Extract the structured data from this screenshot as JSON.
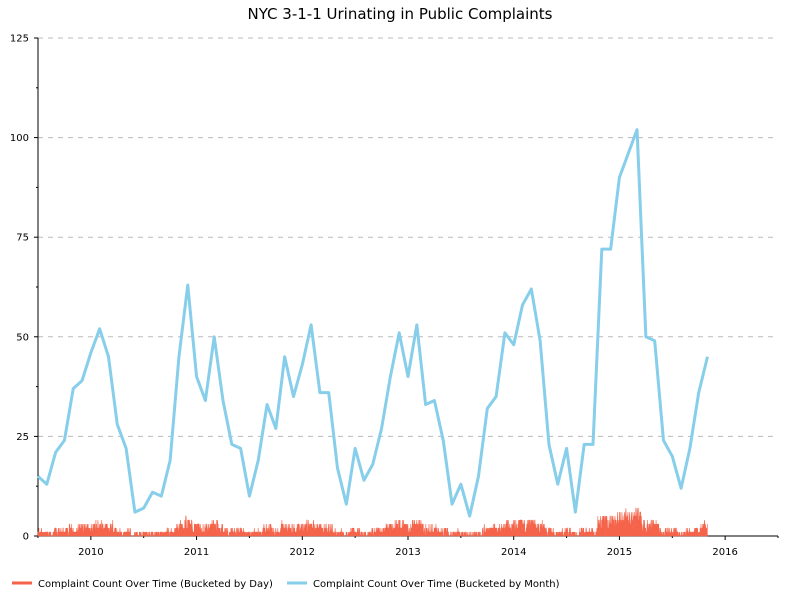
{
  "chart_data": {
    "type": "line",
    "title": "NYC 3-1-1 Urinating in Public Complaints",
    "xlabel": "",
    "ylabel": "",
    "ylim": [
      0,
      125
    ],
    "y_ticks": [
      "0",
      "25",
      "50",
      "75",
      "100",
      "125"
    ],
    "x_ticks": [
      "2010",
      "2011",
      "2012",
      "2013",
      "2014",
      "2015",
      "2016"
    ],
    "grid": "horizontal-dashed",
    "legend_position": "bottom",
    "series": [
      {
        "name": "Complaint Count Over Time (Bucketed by Day)",
        "color": "#f4634a",
        "style": "area",
        "x_start": "2009-07",
        "x_end": "2015-11",
        "typical_range": [
          0,
          6
        ]
      },
      {
        "name": "Complaint Count Over Time (Bucketed by Month)",
        "color": "#87ceeb",
        "style": "line",
        "x_start": "2009-07",
        "values": [
          15,
          13,
          21,
          24,
          37,
          39,
          46,
          52,
          45,
          28,
          22,
          6,
          7,
          11,
          10,
          19,
          45,
          63,
          40,
          34,
          50,
          34,
          23,
          22,
          10,
          19,
          33,
          27,
          45,
          35,
          43,
          53,
          36,
          36,
          17,
          8,
          22,
          14,
          18,
          27,
          40,
          51,
          40,
          53,
          33,
          34,
          24,
          8,
          13,
          5,
          15,
          32,
          35,
          51,
          48,
          58,
          62,
          49,
          23,
          13,
          22,
          6,
          23,
          23,
          72,
          72,
          90,
          96,
          102,
          50,
          49,
          24,
          20,
          12,
          22,
          36,
          45
        ]
      }
    ]
  }
}
